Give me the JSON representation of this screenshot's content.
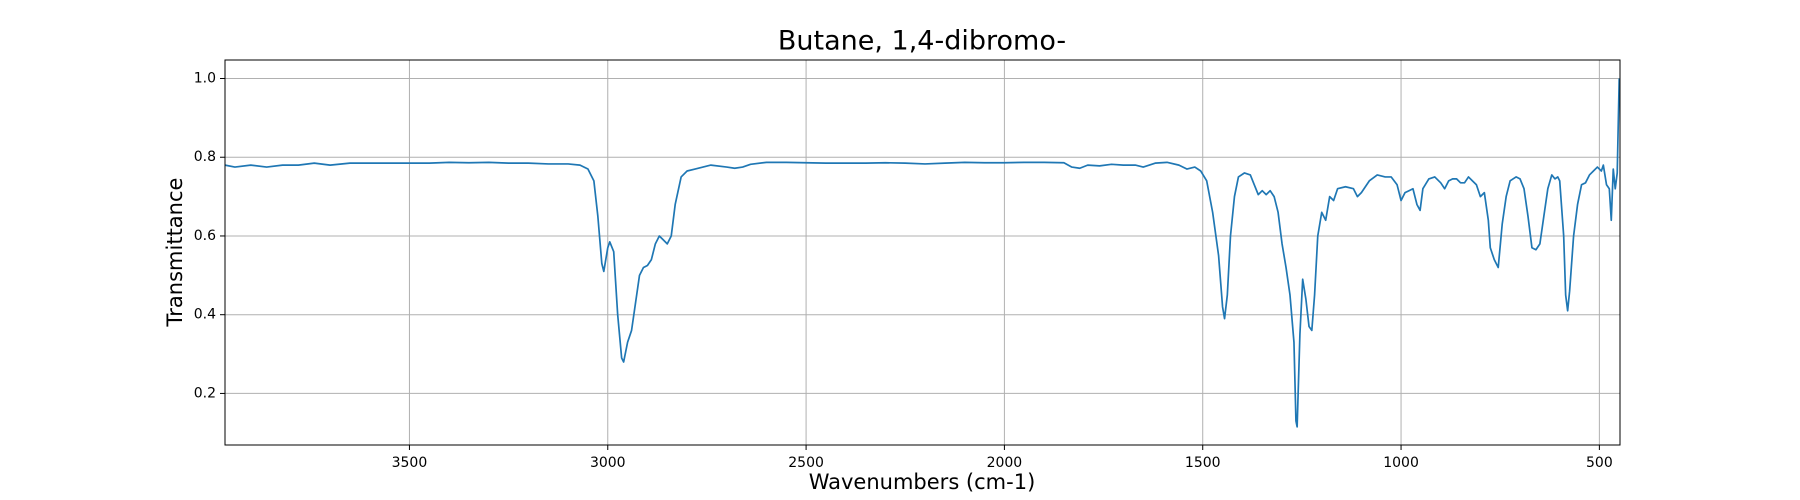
{
  "chart_data": {
    "type": "line",
    "title": "Butane, 1,4-dibromo-",
    "x_label": "Wavenumbers (cm-1)",
    "y_label": "Transmittance",
    "x": [
      3965,
      3940,
      3900,
      3860,
      3820,
      3780,
      3740,
      3700,
      3650,
      3600,
      3550,
      3500,
      3450,
      3400,
      3350,
      3300,
      3250,
      3200,
      3150,
      3100,
      3070,
      3050,
      3035,
      3025,
      3015,
      3010,
      3000,
      2995,
      2985,
      2975,
      2965,
      2960,
      2950,
      2940,
      2930,
      2920,
      2910,
      2900,
      2890,
      2880,
      2870,
      2860,
      2850,
      2840,
      2830,
      2815,
      2800,
      2780,
      2760,
      2740,
      2700,
      2680,
      2660,
      2640,
      2600,
      2550,
      2500,
      2450,
      2400,
      2350,
      2300,
      2250,
      2200,
      2150,
      2100,
      2050,
      2000,
      1950,
      1900,
      1850,
      1830,
      1810,
      1790,
      1760,
      1730,
      1700,
      1670,
      1650,
      1620,
      1590,
      1560,
      1540,
      1520,
      1505,
      1490,
      1475,
      1460,
      1450,
      1445,
      1438,
      1430,
      1420,
      1410,
      1395,
      1380,
      1370,
      1360,
      1350,
      1340,
      1330,
      1320,
      1310,
      1300,
      1290,
      1280,
      1270,
      1265,
      1262,
      1255,
      1248,
      1240,
      1232,
      1225,
      1218,
      1210,
      1200,
      1190,
      1180,
      1170,
      1160,
      1140,
      1120,
      1110,
      1100,
      1080,
      1060,
      1040,
      1025,
      1010,
      1000,
      990,
      980,
      970,
      960,
      952,
      945,
      930,
      915,
      900,
      890,
      880,
      870,
      860,
      850,
      840,
      830,
      820,
      810,
      800,
      790,
      780,
      775,
      765,
      755,
      745,
      735,
      725,
      710,
      700,
      690,
      680,
      670,
      660,
      650,
      640,
      630,
      620,
      612,
      605,
      600,
      590,
      585,
      580,
      575,
      565,
      555,
      545,
      535,
      525,
      515,
      505,
      495,
      490,
      482,
      475,
      470,
      465,
      460,
      455,
      450
    ],
    "series": [
      {
        "name": "Transmittance",
        "color": "#1f77b4",
        "values": [
          0.78,
          0.775,
          0.78,
          0.775,
          0.78,
          0.78,
          0.785,
          0.78,
          0.785,
          0.785,
          0.785,
          0.785,
          0.785,
          0.787,
          0.786,
          0.787,
          0.785,
          0.785,
          0.783,
          0.783,
          0.78,
          0.77,
          0.74,
          0.65,
          0.53,
          0.51,
          0.57,
          0.585,
          0.56,
          0.4,
          0.29,
          0.28,
          0.33,
          0.36,
          0.43,
          0.5,
          0.52,
          0.525,
          0.54,
          0.58,
          0.6,
          0.59,
          0.58,
          0.6,
          0.68,
          0.75,
          0.765,
          0.77,
          0.775,
          0.78,
          0.775,
          0.772,
          0.775,
          0.782,
          0.787,
          0.787,
          0.786,
          0.785,
          0.785,
          0.785,
          0.786,
          0.785,
          0.783,
          0.785,
          0.787,
          0.786,
          0.786,
          0.787,
          0.787,
          0.786,
          0.775,
          0.772,
          0.78,
          0.778,
          0.782,
          0.78,
          0.78,
          0.775,
          0.785,
          0.787,
          0.78,
          0.77,
          0.775,
          0.765,
          0.74,
          0.66,
          0.55,
          0.42,
          0.39,
          0.45,
          0.6,
          0.7,
          0.75,
          0.76,
          0.755,
          0.73,
          0.705,
          0.715,
          0.705,
          0.715,
          0.7,
          0.66,
          0.58,
          0.52,
          0.45,
          0.33,
          0.13,
          0.115,
          0.35,
          0.49,
          0.44,
          0.37,
          0.36,
          0.45,
          0.6,
          0.66,
          0.64,
          0.7,
          0.69,
          0.72,
          0.725,
          0.72,
          0.7,
          0.71,
          0.74,
          0.755,
          0.75,
          0.75,
          0.73,
          0.69,
          0.71,
          0.715,
          0.72,
          0.68,
          0.665,
          0.72,
          0.745,
          0.75,
          0.735,
          0.72,
          0.74,
          0.745,
          0.745,
          0.735,
          0.735,
          0.75,
          0.74,
          0.73,
          0.7,
          0.71,
          0.64,
          0.57,
          0.54,
          0.52,
          0.63,
          0.7,
          0.74,
          0.75,
          0.745,
          0.72,
          0.65,
          0.57,
          0.565,
          0.58,
          0.65,
          0.72,
          0.755,
          0.745,
          0.75,
          0.74,
          0.6,
          0.45,
          0.41,
          0.46,
          0.6,
          0.68,
          0.73,
          0.735,
          0.755,
          0.765,
          0.775,
          0.765,
          0.78,
          0.73,
          0.72,
          0.64,
          0.77,
          0.72,
          0.76,
          1.0
        ]
      }
    ],
    "xlim": [
      3965,
      448
    ],
    "ylim": [
      0.069,
      1.047
    ],
    "xticks": [
      3500,
      3000,
      2500,
      2000,
      1500,
      1000,
      500
    ],
    "yticks": [
      0.2,
      0.4,
      0.6,
      0.8,
      {
        "value": 1,
        "label": "1.0"
      }
    ],
    "grid": true
  }
}
